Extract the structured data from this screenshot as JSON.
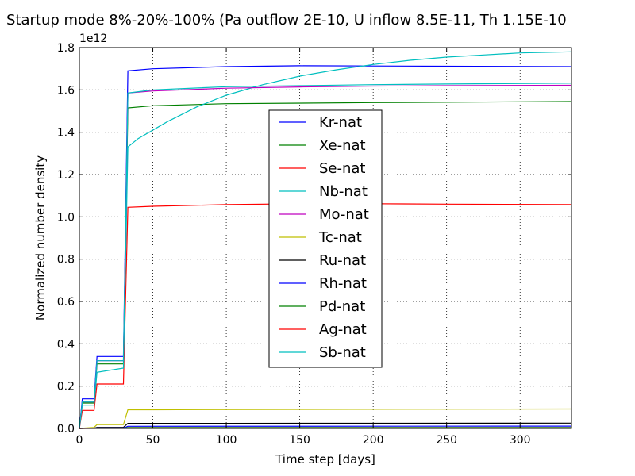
{
  "chart_data": {
    "type": "line",
    "title": "Startup mode 8%-20%-100% (Pa outflow 2E-10, U inflow 8.5E-11, Th 1.15E-10",
    "xlabel": "Time step [days]",
    "ylabel": "Normalized number density",
    "y_multiplier": "1e12",
    "xlim": [
      0,
      335
    ],
    "ylim": [
      0.0,
      1.8
    ],
    "xticks": [
      "0",
      "50",
      "100",
      "150",
      "200",
      "250",
      "300"
    ],
    "yticks": [
      "0.0",
      "0.2",
      "0.4",
      "0.6",
      "0.8",
      "1.0",
      "1.2",
      "1.4",
      "1.6",
      "1.8"
    ],
    "grid": true,
    "legend_position": "center",
    "series": [
      {
        "name": "Kr-nat",
        "color": "#0000ff",
        "points": [
          [
            0,
            0
          ],
          [
            2,
            0.14
          ],
          [
            10,
            0.14
          ],
          [
            12,
            0.34
          ],
          [
            30,
            0.34
          ],
          [
            33,
            1.69
          ],
          [
            50,
            1.7
          ],
          [
            100,
            1.71
          ],
          [
            150,
            1.714
          ],
          [
            200,
            1.713
          ],
          [
            250,
            1.712
          ],
          [
            335,
            1.71
          ]
        ]
      },
      {
        "name": "Xe-nat",
        "color": "#008000",
        "points": [
          [
            0,
            0
          ],
          [
            2,
            0.12
          ],
          [
            10,
            0.12
          ],
          [
            12,
            0.305
          ],
          [
            30,
            0.305
          ],
          [
            33,
            1.515
          ],
          [
            50,
            1.525
          ],
          [
            100,
            1.535
          ],
          [
            200,
            1.54
          ],
          [
            335,
            1.545
          ]
        ]
      },
      {
        "name": "Se-nat",
        "color": "#ff0000",
        "points": [
          [
            0,
            0
          ],
          [
            2,
            0.085
          ],
          [
            10,
            0.085
          ],
          [
            12,
            0.21
          ],
          [
            30,
            0.21
          ],
          [
            33,
            1.045
          ],
          [
            50,
            1.05
          ],
          [
            100,
            1.058
          ],
          [
            150,
            1.062
          ],
          [
            200,
            1.062
          ],
          [
            250,
            1.06
          ],
          [
            335,
            1.058
          ]
        ]
      },
      {
        "name": "Nb-nat",
        "color": "#00bfbf",
        "points": [
          [
            0,
            0
          ],
          [
            2,
            0.11
          ],
          [
            10,
            0.11
          ],
          [
            12,
            0.265
          ],
          [
            30,
            0.285
          ],
          [
            33,
            1.33
          ],
          [
            40,
            1.37
          ],
          [
            60,
            1.45
          ],
          [
            80,
            1.52
          ],
          [
            100,
            1.575
          ],
          [
            125,
            1.625
          ],
          [
            150,
            1.665
          ],
          [
            175,
            1.695
          ],
          [
            200,
            1.72
          ],
          [
            225,
            1.74
          ],
          [
            250,
            1.755
          ],
          [
            275,
            1.765
          ],
          [
            300,
            1.775
          ],
          [
            335,
            1.78
          ]
        ]
      },
      {
        "name": "Mo-nat",
        "color": "#bf00bf",
        "points": [
          [
            0,
            0
          ],
          [
            2,
            0.125
          ],
          [
            10,
            0.125
          ],
          [
            12,
            0.32
          ],
          [
            30,
            0.32
          ],
          [
            33,
            1.585
          ],
          [
            50,
            1.595
          ],
          [
            100,
            1.608
          ],
          [
            150,
            1.614
          ],
          [
            200,
            1.618
          ],
          [
            250,
            1.62
          ],
          [
            335,
            1.622
          ]
        ]
      },
      {
        "name": "Tc-nat",
        "color": "#bfbf00",
        "points": [
          [
            0,
            0
          ],
          [
            10,
            0.005
          ],
          [
            12,
            0.018
          ],
          [
            30,
            0.018
          ],
          [
            33,
            0.088
          ],
          [
            50,
            0.088
          ],
          [
            150,
            0.09
          ],
          [
            335,
            0.092
          ]
        ]
      },
      {
        "name": "Ru-nat",
        "color": "#000000",
        "points": [
          [
            0,
            0
          ],
          [
            10,
            0.001
          ],
          [
            12,
            0.005
          ],
          [
            30,
            0.005
          ],
          [
            33,
            0.024
          ],
          [
            100,
            0.024
          ],
          [
            335,
            0.025
          ]
        ]
      },
      {
        "name": "Rh-nat",
        "color": "#0000ff",
        "points": [
          [
            0,
            0
          ],
          [
            12,
            0.002
          ],
          [
            30,
            0.002
          ],
          [
            33,
            0.01
          ],
          [
            335,
            0.011
          ]
        ]
      },
      {
        "name": "Pd-nat",
        "color": "#008000",
        "points": [
          [
            0,
            0
          ],
          [
            12,
            0.001
          ],
          [
            30,
            0.001
          ],
          [
            33,
            0.004
          ],
          [
            335,
            0.004
          ]
        ]
      },
      {
        "name": "Ag-nat",
        "color": "#ff0000",
        "points": [
          [
            0,
            0
          ],
          [
            12,
            0.0005
          ],
          [
            30,
            0.0005
          ],
          [
            33,
            0.002
          ],
          [
            335,
            0.002
          ]
        ]
      },
      {
        "name": "Sb-nat",
        "color": "#00bfbf",
        "points": [
          [
            0,
            0
          ],
          [
            2,
            0.125
          ],
          [
            10,
            0.125
          ],
          [
            12,
            0.32
          ],
          [
            30,
            0.32
          ],
          [
            33,
            1.585
          ],
          [
            50,
            1.6
          ],
          [
            100,
            1.615
          ],
          [
            150,
            1.62
          ],
          [
            200,
            1.625
          ],
          [
            250,
            1.628
          ],
          [
            335,
            1.632
          ]
        ]
      }
    ]
  }
}
